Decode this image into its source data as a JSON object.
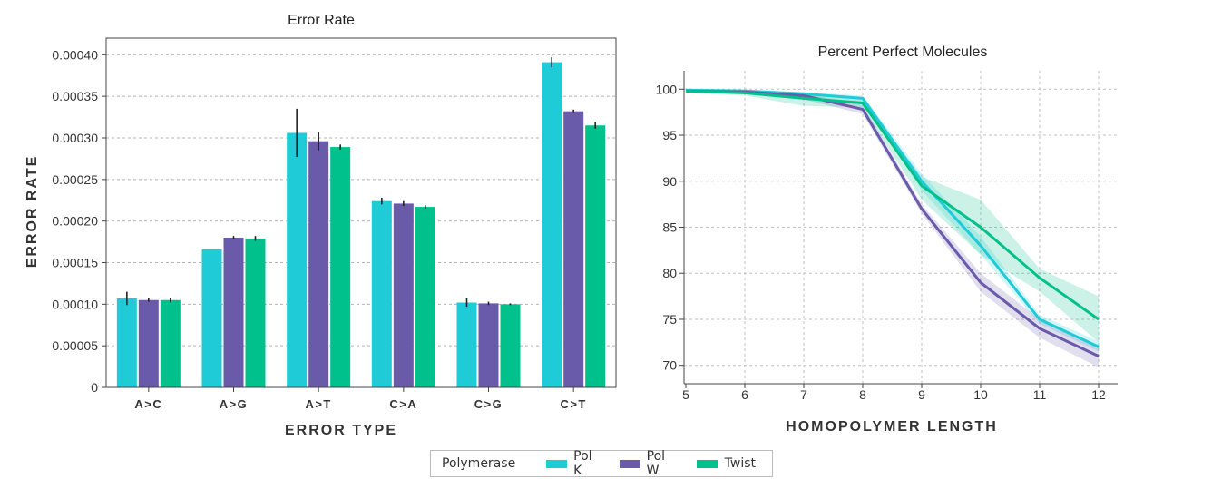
{
  "chart_data": [
    {
      "type": "bar",
      "title": "Error Rate",
      "xlabel": "ERROR TYPE",
      "ylabel": "ERROR RATE",
      "categories": [
        "A>C",
        "A>G",
        "A>T",
        "C>A",
        "C>G",
        "C>T"
      ],
      "ylim": [
        0,
        0.00042
      ],
      "yticks": [
        0,
        5e-05,
        0.0001,
        0.00015,
        0.0002,
        0.00025,
        0.0003,
        0.00035,
        0.0004
      ],
      "ytick_labels": [
        "0",
        "0.00005",
        "0.00010",
        "0.00015",
        "0.00020",
        "0.00025",
        "0.00030",
        "0.00035",
        "0.00040"
      ],
      "grid": true,
      "series": [
        {
          "name": "Pol K",
          "color": "#1ecbd6",
          "values": [
            0.000107,
            0.000166,
            0.000306,
            0.000224,
            0.000102,
            0.000391
          ],
          "error": [
            8e-06,
            0,
            2.9e-05,
            4e-06,
            5e-06,
            6e-06
          ]
        },
        {
          "name": "Pol W",
          "color": "#6a5aaa",
          "values": [
            0.000105,
            0.00018,
            0.000296,
            0.000221,
            0.000101,
            0.000332
          ],
          "error": [
            2e-06,
            2e-06,
            1.1e-05,
            3e-06,
            2e-06,
            2e-06
          ]
        },
        {
          "name": "Twist",
          "color": "#00c08b",
          "values": [
            0.000105,
            0.000179,
            0.000289,
            0.000217,
            0.0001,
            0.000315
          ],
          "error": [
            3e-06,
            3e-06,
            3e-06,
            2e-06,
            1e-06,
            4e-06
          ]
        }
      ]
    },
    {
      "type": "line",
      "title": "Percent Perfect Molecules",
      "xlabel": "HOMOPOLYMER LENGTH",
      "ylabel": "",
      "x": [
        5,
        6,
        7,
        8,
        9,
        10,
        11,
        12
      ],
      "xlim": [
        5,
        12.3
      ],
      "ylim": [
        68,
        102
      ],
      "yticks": [
        70,
        75,
        80,
        85,
        90,
        95,
        100
      ],
      "grid": true,
      "series": [
        {
          "name": "Pol K",
          "color": "#1ecbd6",
          "values": [
            99.9,
            99.8,
            99.5,
            99.0,
            90.0,
            83.0,
            75.0,
            72.0
          ],
          "lower": [
            99.8,
            99.7,
            99.2,
            98.6,
            89.0,
            82.0,
            74.5,
            71.5
          ],
          "upper": [
            100.0,
            99.9,
            99.7,
            99.3,
            90.8,
            84.0,
            75.5,
            72.6
          ]
        },
        {
          "name": "Pol W",
          "color": "#6a5aaa",
          "values": [
            99.8,
            99.7,
            99.3,
            97.8,
            87.0,
            79.0,
            74.0,
            71.0
          ],
          "lower": [
            99.7,
            99.5,
            98.9,
            97.3,
            86.5,
            78.0,
            73.0,
            69.8
          ],
          "upper": [
            99.9,
            99.8,
            99.5,
            98.3,
            87.5,
            80.0,
            75.0,
            72.2
          ]
        },
        {
          "name": "Twist",
          "color": "#00c08b",
          "values": [
            99.8,
            99.6,
            99.0,
            98.5,
            89.5,
            85.0,
            79.5,
            75.0
          ],
          "lower": [
            99.6,
            99.3,
            98.2,
            98.0,
            88.0,
            82.0,
            78.0,
            72.5
          ],
          "upper": [
            99.9,
            99.8,
            99.4,
            98.9,
            90.5,
            88.0,
            80.5,
            77.5
          ]
        }
      ]
    }
  ],
  "legend": {
    "title": "Polymerase",
    "items": [
      {
        "label": "Pol K",
        "color": "#1ecbd6"
      },
      {
        "label": "Pol W",
        "color": "#6a5aaa"
      },
      {
        "label": "Twist",
        "color": "#00c08b"
      }
    ]
  }
}
